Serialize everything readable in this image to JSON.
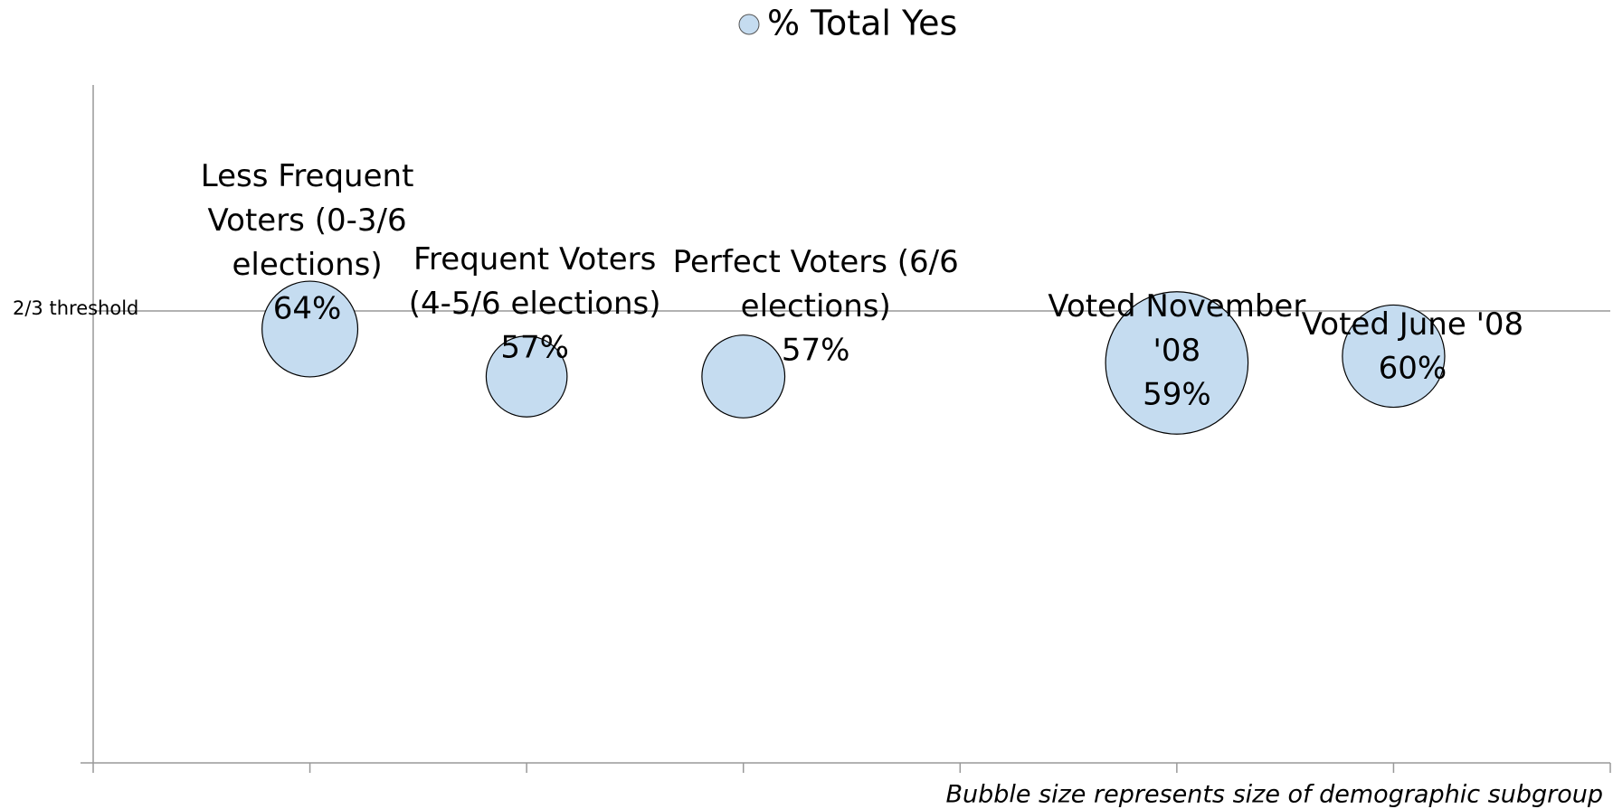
{
  "chart_data": {
    "type": "bubble",
    "series": [
      {
        "name": "% Total Yes",
        "color": "#c5dcf0",
        "labels": [
          "Less Frequent\nVoters (0-3/6\nelections)",
          "Frequent Voters\n(4-5/6 elections)",
          "Perfect Voters (6/6\nelections)",
          "Voted November\n'08",
          "Voted June '08"
        ],
        "x": [
          1,
          2,
          3,
          5,
          6
        ],
        "values": [
          64,
          57,
          57,
          59,
          60
        ],
        "value_labels": [
          "64%",
          "57%",
          "57%",
          "59%",
          "60%"
        ],
        "sizes": [
          28,
          20,
          21,
          62,
          32
        ]
      }
    ],
    "xlim": [
      0,
      7
    ],
    "xticks": [
      0,
      1,
      2,
      3,
      4,
      5,
      6,
      7
    ],
    "ylim": [
      0,
      100
    ],
    "threshold": {
      "value": 66.67,
      "label": "2/3 threshold"
    },
    "legend": "top",
    "footnote": "Bubble size represents size of demographic subgroup"
  }
}
